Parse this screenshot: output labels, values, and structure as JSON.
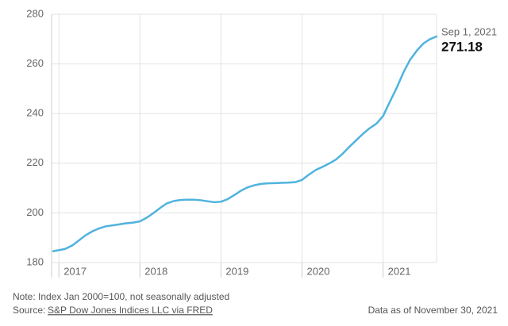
{
  "chart_data": {
    "type": "line",
    "x": [
      2016.92,
      2017.0,
      2017.08,
      2017.17,
      2017.25,
      2017.33,
      2017.42,
      2017.5,
      2017.58,
      2017.67,
      2017.75,
      2017.83,
      2017.92,
      2018.0,
      2018.08,
      2018.17,
      2018.25,
      2018.33,
      2018.42,
      2018.5,
      2018.58,
      2018.67,
      2018.75,
      2018.83,
      2018.92,
      2019.0,
      2019.08,
      2019.17,
      2019.25,
      2019.33,
      2019.42,
      2019.5,
      2019.58,
      2019.67,
      2019.75,
      2019.83,
      2019.92,
      2020.0,
      2020.08,
      2020.17,
      2020.25,
      2020.33,
      2020.42,
      2020.5,
      2020.58,
      2020.67,
      2020.75,
      2020.83,
      2020.92,
      2021.0,
      2021.08,
      2021.17,
      2021.25,
      2021.33,
      2021.42,
      2021.5,
      2021.58,
      2021.67
    ],
    "series": [
      {
        "color": "#4fb3de",
        "values": [
          184.5,
          185.0,
          185.5,
          187.0,
          189.0,
          191.0,
          192.7,
          193.8,
          194.6,
          195.0,
          195.4,
          195.8,
          196.1,
          196.6,
          198.0,
          200.0,
          202.0,
          203.8,
          204.8,
          205.2,
          205.3,
          205.3,
          205.1,
          204.7,
          204.3,
          204.5,
          205.5,
          207.3,
          209.0,
          210.3,
          211.2,
          211.7,
          211.9,
          212.0,
          212.1,
          212.2,
          212.4,
          213.3,
          215.3,
          217.3,
          218.5,
          219.8,
          221.5,
          223.8,
          226.5,
          229.3,
          231.8,
          234.0,
          236.0,
          239.0,
          244.5,
          250.5,
          256.5,
          261.5,
          265.5,
          268.3,
          270.0,
          271.18
        ]
      }
    ],
    "xlim": [
      2016.91,
      2021.66
    ],
    "xticks": [
      2017,
      2018,
      2019,
      2020,
      2021
    ],
    "ylim": [
      180,
      280
    ],
    "yticks": [
      180,
      200,
      220,
      240,
      260,
      280
    ],
    "grid": true,
    "annotation": "Sep 1, 2021",
    "note": "Note: Index Jan 2000=100, not seasonally adjusted",
    "source_label": "Source:",
    "source_link": "S&P Dow Jones Indices LLC via FRED",
    "data_as_of": "Data as of November 30, 2021"
  }
}
